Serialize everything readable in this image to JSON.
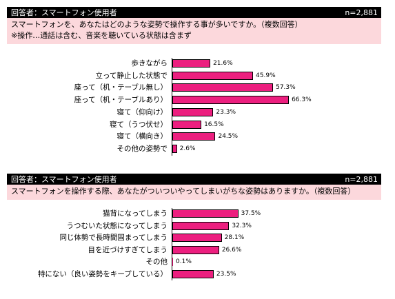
{
  "chart_data": [
    {
      "type": "bar",
      "orientation": "horizontal",
      "header_left": "回答者：スマートフォン使用者",
      "header_right": "n=2,881",
      "question_lines": [
        "スマートフォンを、あなたはどのような姿勢で操作する事が多いですか。（複数回答）",
        "※操作…通話は含む、音楽を聴いている状態は含まず"
      ],
      "categories": [
        "歩きながら",
        "立って静止した状態で",
        "座って（机・テーブル無し）",
        "座って（机・テーブルあり）",
        "寝て（仰向け）",
        "寝て（うつ伏せ）",
        "寝て（横向き）",
        "その他の姿勢で"
      ],
      "values": [
        21.6,
        45.9,
        57.3,
        66.3,
        23.3,
        16.5,
        24.5,
        2.6
      ],
      "value_labels": [
        "21.6%",
        "45.9%",
        "57.3%",
        "66.3%",
        "23.3%",
        "16.5%",
        "24.5%",
        "2.6%"
      ],
      "unit": "%",
      "bar_color": "#ec1f7f"
    },
    {
      "type": "bar",
      "orientation": "horizontal",
      "header_left": "回答者：スマートフォン使用者",
      "header_right": "n=2,881",
      "question_lines": [
        "スマートフォンを操作する際、あなたがついついやってしまいがちな姿勢はありますか。（複数回答）"
      ],
      "categories": [
        "猫背になってしまう",
        "うつむいた状態になってしまう",
        "同じ体勢で長時間固まってしまう",
        "目を近づけすぎてしまう",
        "その他",
        "特にない（良い姿勢をキープしている）"
      ],
      "values": [
        37.5,
        32.3,
        28.1,
        26.6,
        0.1,
        23.5
      ],
      "value_labels": [
        "37.5%",
        "32.3%",
        "28.1%",
        "26.6%",
        "0.1%",
        "23.5%"
      ],
      "unit": "%",
      "bar_color": "#ec1f7f"
    }
  ]
}
